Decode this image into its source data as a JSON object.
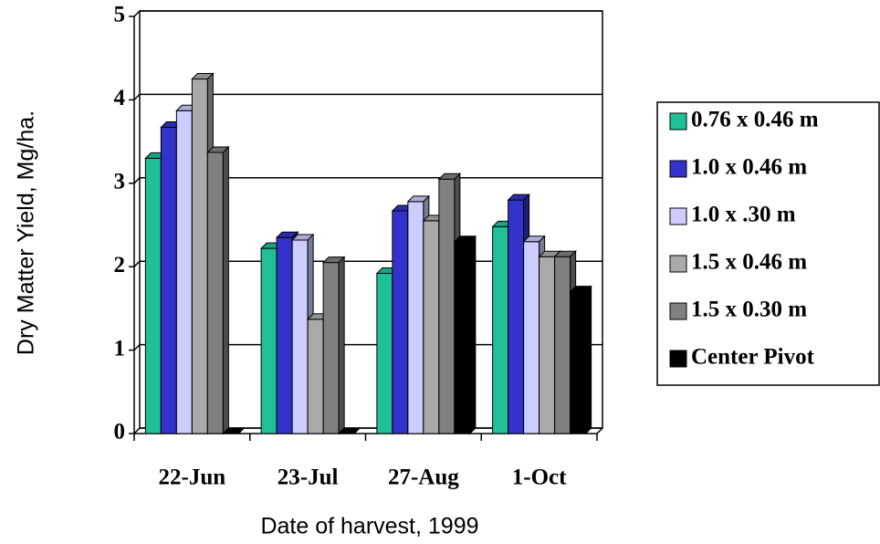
{
  "chart_data": {
    "type": "bar3d",
    "x_label": "Date of harvest, 1999",
    "y_label": "Dry Matter Yield, Mg/ha.",
    "categories": [
      "22-Jun",
      "23-Jul",
      "27-Aug",
      "1-Oct"
    ],
    "series": [
      {
        "name": "0.76 x 0.46 m",
        "color": "#1fbf98",
        "values": [
          3.3,
          2.22,
          1.92,
          2.48
        ]
      },
      {
        "name": "1.0 x 0.46 m",
        "color": "#3333cc",
        "values": [
          3.67,
          2.35,
          2.67,
          2.8
        ]
      },
      {
        "name": "1.0 x .30 m",
        "color": "#ccccff",
        "values": [
          3.87,
          2.32,
          2.78,
          2.3
        ]
      },
      {
        "name": "1.5 x 0.46 m",
        "color": "#aaaaaa",
        "values": [
          4.25,
          1.37,
          2.55,
          2.12
        ]
      },
      {
        "name": "1.5 x 0.30 m",
        "color": "#808080",
        "values": [
          3.37,
          2.05,
          3.05,
          2.12
        ]
      },
      {
        "name": "Center Pivot",
        "color": "#000000",
        "values": [
          0,
          0,
          2.3,
          1.7
        ]
      }
    ],
    "ylim": [
      0,
      5
    ],
    "yticks": [
      0,
      1,
      2,
      3,
      4,
      5
    ],
    "grid": true
  }
}
